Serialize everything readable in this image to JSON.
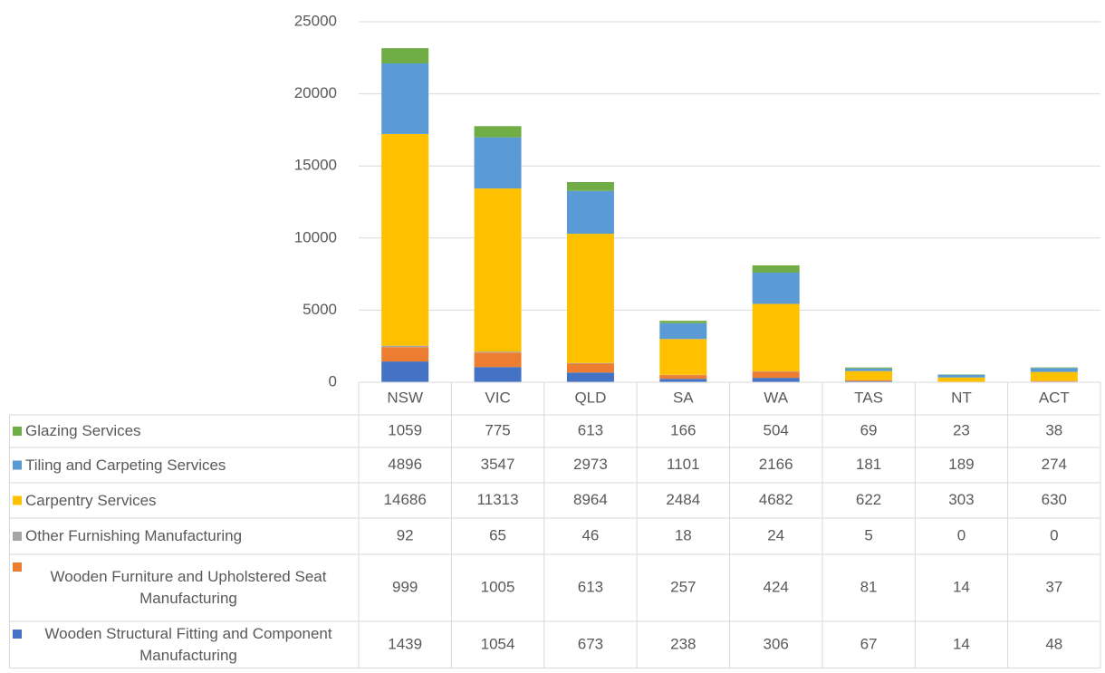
{
  "chart_data": {
    "type": "stacked_bar",
    "categories": [
      "NSW",
      "VIC",
      "QLD",
      "SA",
      "WA",
      "TAS",
      "NT",
      "ACT"
    ],
    "series": [
      {
        "name": "Glazing Services",
        "color": "#70ad47",
        "values": [
          1059,
          775,
          613,
          166,
          504,
          69,
          23,
          38
        ]
      },
      {
        "name": "Tiling and Carpeting Services",
        "color": "#5b9bd5",
        "values": [
          4896,
          3547,
          2973,
          1101,
          2166,
          181,
          189,
          274
        ]
      },
      {
        "name": "Carpentry Services",
        "color": "#ffc000",
        "values": [
          14686,
          11313,
          8964,
          2484,
          4682,
          622,
          303,
          630
        ]
      },
      {
        "name": "Other Furnishing Manufacturing",
        "color": "#a5a5a5",
        "values": [
          92,
          65,
          46,
          18,
          24,
          5,
          0,
          0
        ]
      },
      {
        "name": "Wooden Furniture and Upholstered Seat Manufacturing",
        "color": "#ed7d31",
        "values": [
          999,
          1005,
          613,
          257,
          424,
          81,
          14,
          37
        ]
      },
      {
        "name": "Wooden Structural Fitting and Component Manufacturing",
        "color": "#4472c4",
        "values": [
          1439,
          1054,
          673,
          238,
          306,
          67,
          14,
          48
        ]
      }
    ],
    "ylim": [
      0,
      25000
    ],
    "yticks": [
      0,
      5000,
      10000,
      15000,
      20000,
      25000
    ],
    "grid": true,
    "data_table": true
  }
}
